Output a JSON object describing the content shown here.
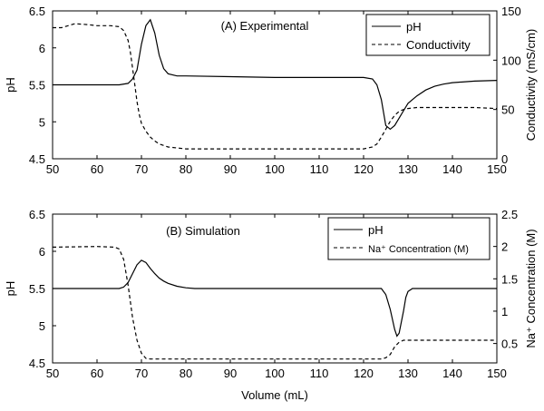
{
  "colors": {
    "line": "#000000",
    "background": "#ffffff"
  },
  "chart_data": [
    {
      "type": "line",
      "title": "(A) Experimental",
      "xlabel": "",
      "ylabel_left": "pH",
      "ylabel_right": "Conductivity (mS/cm)",
      "xlim": [
        50,
        150
      ],
      "ylim_left": [
        4.5,
        6.5
      ],
      "ylim_right": [
        0,
        150
      ],
      "xticks": [
        50,
        60,
        70,
        80,
        90,
        100,
        110,
        120,
        130,
        140,
        150
      ],
      "yticks_left": [
        "4.5",
        "5",
        "5.5",
        "6",
        "6.5"
      ],
      "yticks_right": [
        "0",
        "50",
        "100",
        "150"
      ],
      "legend_position": "top-right",
      "series": [
        {
          "name": "pH",
          "axis": "left",
          "style": "solid",
          "x": [
            50,
            55,
            60,
            65,
            67,
            68,
            69,
            70,
            71,
            72,
            73,
            74,
            75,
            76,
            78,
            80,
            90,
            100,
            110,
            120,
            122,
            123,
            124,
            125,
            126,
            127,
            128,
            129,
            130,
            132,
            134,
            136,
            138,
            140,
            145,
            150
          ],
          "y": [
            5.5,
            5.5,
            5.5,
            5.5,
            5.52,
            5.58,
            5.7,
            6.05,
            6.3,
            6.38,
            6.2,
            5.9,
            5.72,
            5.65,
            5.62,
            5.62,
            5.61,
            5.6,
            5.6,
            5.6,
            5.58,
            5.5,
            5.3,
            4.95,
            4.9,
            4.95,
            5.05,
            5.15,
            5.25,
            5.35,
            5.43,
            5.48,
            5.51,
            5.53,
            5.55,
            5.56
          ]
        },
        {
          "name": "Conductivity",
          "axis": "right",
          "style": "dashed",
          "x": [
            50,
            52,
            55,
            58,
            60,
            63,
            65,
            66,
            67,
            67.5,
            68,
            68.5,
            69,
            69.5,
            70,
            71,
            72,
            73,
            74,
            76,
            80,
            90,
            100,
            110,
            120,
            122,
            123,
            124,
            125,
            126,
            127,
            128,
            129,
            130,
            132,
            135,
            140,
            145,
            150
          ],
          "y": [
            133,
            133,
            137,
            136,
            135,
            135,
            134,
            130,
            120,
            108,
            92,
            75,
            58,
            45,
            36,
            28,
            22,
            18,
            15,
            12,
            10,
            10,
            10,
            10,
            10,
            12,
            15,
            22,
            30,
            38,
            44,
            48,
            50,
            51,
            52,
            52,
            52,
            52,
            51
          ]
        }
      ]
    },
    {
      "type": "line",
      "title": "(B) Simulation",
      "xlabel": "Volume (mL)",
      "ylabel_left": "pH",
      "ylabel_right": "Na⁺ Concentration (M)",
      "xlim": [
        50,
        150
      ],
      "ylim_left": [
        4.5,
        6.5
      ],
      "ylim_right": [
        0.2,
        2.5
      ],
      "xticks": [
        50,
        60,
        70,
        80,
        90,
        100,
        110,
        120,
        130,
        140,
        150
      ],
      "yticks_left": [
        "4.5",
        "5",
        "5.5",
        "6",
        "6.5"
      ],
      "yticks_right": [
        "0.5",
        "1",
        "1.5",
        "2",
        "2.5"
      ],
      "legend_position": "top-right",
      "series": [
        {
          "name": "pH",
          "axis": "left",
          "style": "solid",
          "x": [
            50,
            60,
            65,
            66,
            67,
            68,
            69,
            70,
            71,
            72,
            73,
            74,
            75,
            76,
            78,
            80,
            82,
            90,
            100,
            110,
            120,
            124,
            125,
            126,
            127,
            127.5,
            128,
            129,
            129.5,
            130,
            131,
            135,
            140,
            150
          ],
          "y": [
            5.5,
            5.5,
            5.5,
            5.52,
            5.58,
            5.7,
            5.82,
            5.88,
            5.85,
            5.77,
            5.7,
            5.64,
            5.6,
            5.57,
            5.53,
            5.51,
            5.5,
            5.5,
            5.5,
            5.5,
            5.5,
            5.5,
            5.42,
            5.22,
            4.95,
            4.86,
            4.9,
            5.2,
            5.38,
            5.46,
            5.5,
            5.5,
            5.5,
            5.5
          ]
        },
        {
          "name": "Na⁺ Concentration (M)",
          "axis": "right",
          "style": "dashed",
          "x": [
            50,
            60,
            64,
            65,
            66,
            67,
            68,
            69,
            70,
            71,
            72,
            75,
            80,
            90,
            100,
            110,
            120,
            124,
            125,
            126,
            127,
            128,
            129,
            130,
            135,
            140,
            150
          ],
          "y": [
            1.99,
            2.0,
            1.99,
            1.96,
            1.8,
            1.4,
            0.9,
            0.55,
            0.35,
            0.27,
            0.26,
            0.26,
            0.26,
            0.26,
            0.26,
            0.26,
            0.26,
            0.26,
            0.28,
            0.33,
            0.45,
            0.52,
            0.55,
            0.55,
            0.55,
            0.55,
            0.55
          ]
        }
      ]
    }
  ]
}
